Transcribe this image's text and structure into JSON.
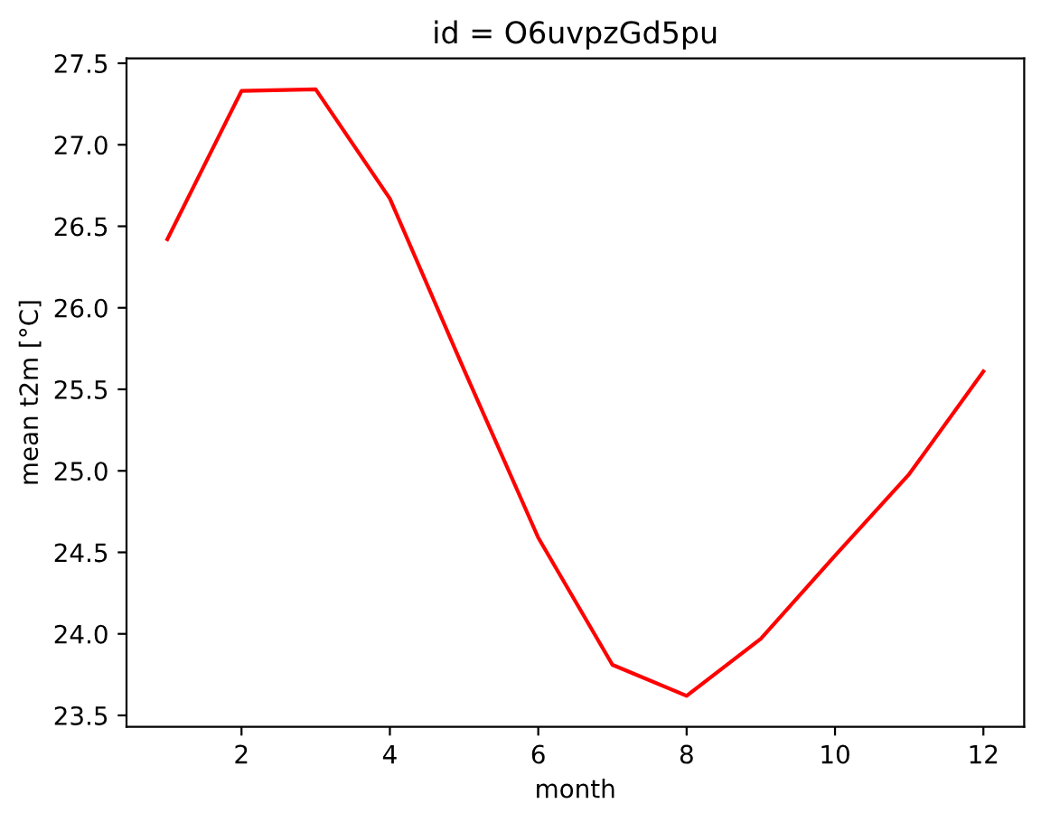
{
  "chart_data": {
    "type": "line",
    "title": "id = O6uvpzGd5pu",
    "xlabel": "month",
    "ylabel": "mean t2m [°C]",
    "x": [
      1,
      2,
      3,
      4,
      5,
      6,
      7,
      8,
      9,
      10,
      11,
      12
    ],
    "series": [
      {
        "color": "#ff0000",
        "values": [
          26.42,
          27.33,
          27.34,
          26.67,
          25.62,
          24.59,
          23.81,
          23.62,
          23.97,
          24.48,
          24.98,
          25.61
        ]
      }
    ],
    "xlim": [
      0.45,
      12.55
    ],
    "ylim": [
      23.43,
      27.53
    ],
    "xticks": [
      2,
      4,
      6,
      8,
      10,
      12
    ],
    "yticks": [
      {
        "value": 23.5,
        "label": "23.5"
      },
      {
        "value": 24.0,
        "label": "24.0"
      },
      {
        "value": 24.5,
        "label": "24.5"
      },
      {
        "value": 25.0,
        "label": "25.0"
      },
      {
        "value": 25.5,
        "label": "25.5"
      },
      {
        "value": 26.0,
        "label": "26.0"
      },
      {
        "value": 26.5,
        "label": "26.5"
      },
      {
        "value": 27.0,
        "label": "27.0"
      },
      {
        "value": 27.5,
        "label": "27.5"
      }
    ],
    "grid": false
  }
}
